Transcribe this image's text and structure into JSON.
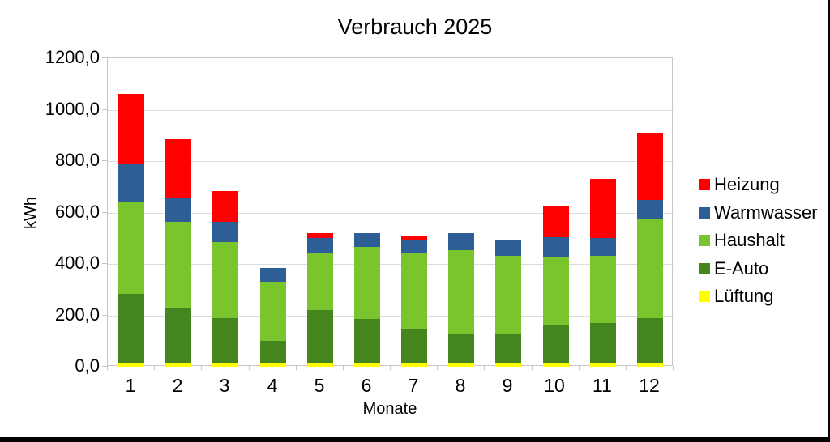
{
  "chart_data": {
    "type": "bar",
    "stacked": true,
    "title": "Verbrauch 2025",
    "xlabel": "Monate",
    "ylabel": "kWh",
    "categories": [
      "1",
      "2",
      "3",
      "4",
      "5",
      "6",
      "7",
      "8",
      "9",
      "10",
      "11",
      "12"
    ],
    "series": [
      {
        "name": "Lüftung",
        "color": "#ffff00",
        "values": [
          15,
          15,
          15,
          15,
          15,
          15,
          15,
          15,
          15,
          15,
          15,
          15
        ]
      },
      {
        "name": "E-Auto",
        "color": "#45851d",
        "values": [
          270,
          215,
          175,
          85,
          205,
          170,
          130,
          110,
          115,
          150,
          155,
          175
        ]
      },
      {
        "name": "Haushalt",
        "color": "#7ac52d",
        "values": [
          355,
          335,
          295,
          230,
          225,
          280,
          295,
          330,
          300,
          260,
          260,
          385
        ]
      },
      {
        "name": "Warmwasser",
        "color": "#2e5e96",
        "values": [
          150,
          90,
          80,
          55,
          55,
          55,
          55,
          65,
          60,
          80,
          70,
          75
        ]
      },
      {
        "name": "Heizung",
        "color": "#ff0000",
        "values": [
          270,
          230,
          120,
          0,
          20,
          0,
          15,
          0,
          0,
          120,
          230,
          260
        ]
      }
    ],
    "legend": [
      "Heizung",
      "Warmwasser",
      "Haushalt",
      "E-Auto",
      "Lüftung"
    ],
    "legend_position": "right",
    "ylim": [
      0,
      1200
    ],
    "y_tick_step": 200,
    "y_tick_labels": [
      "0,0",
      "200,0",
      "400,0",
      "600,0",
      "800,0",
      "1000,0",
      "1200,0"
    ],
    "grid": true
  },
  "style": {
    "background": "#ffffff",
    "grid_color": "#dcdcdc",
    "axis_color": "#c6c6c6",
    "edge_color": "#000000"
  }
}
